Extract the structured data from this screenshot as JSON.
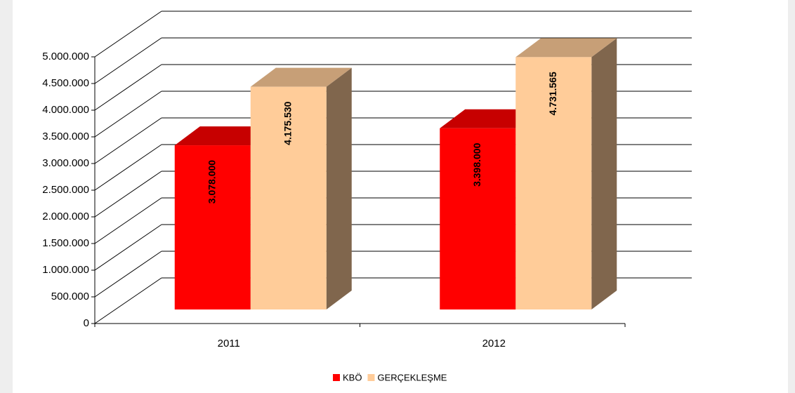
{
  "chart_data": {
    "type": "bar3d",
    "categories": [
      "2011",
      "2012"
    ],
    "series": [
      {
        "name": "KBÖ",
        "color": "#ff0000",
        "values": [
          3078000,
          3398000
        ],
        "value_labels": [
          "3.078.000",
          "3.398.000"
        ]
      },
      {
        "name": "GERÇEKLEŞME",
        "color": "#ffcc99",
        "values": [
          4175530,
          4731565
        ],
        "value_labels": [
          "4.175.530",
          "4.731.565"
        ]
      }
    ],
    "ylim": [
      0,
      5000000
    ],
    "yticks": [
      0,
      {
        "value": 500000,
        "label": "500.000"
      },
      {
        "value": 1000000,
        "label": "1.000.000"
      },
      {
        "value": 1500000,
        "label": "1.500.000"
      },
      {
        "value": 2000000,
        "label": "2.000.000"
      },
      {
        "value": 2500000,
        "label": "2.500.000"
      },
      {
        "value": 3000000,
        "label": "3.000.000"
      },
      {
        "value": 3500000,
        "label": "3.500.000"
      },
      {
        "value": 4000000,
        "label": "4.000.000"
      },
      {
        "value": 4500000,
        "label": "4.500.000"
      },
      {
        "value": 5000000,
        "label": "5.000.000"
      }
    ],
    "grid": true,
    "legend": "bottom"
  }
}
